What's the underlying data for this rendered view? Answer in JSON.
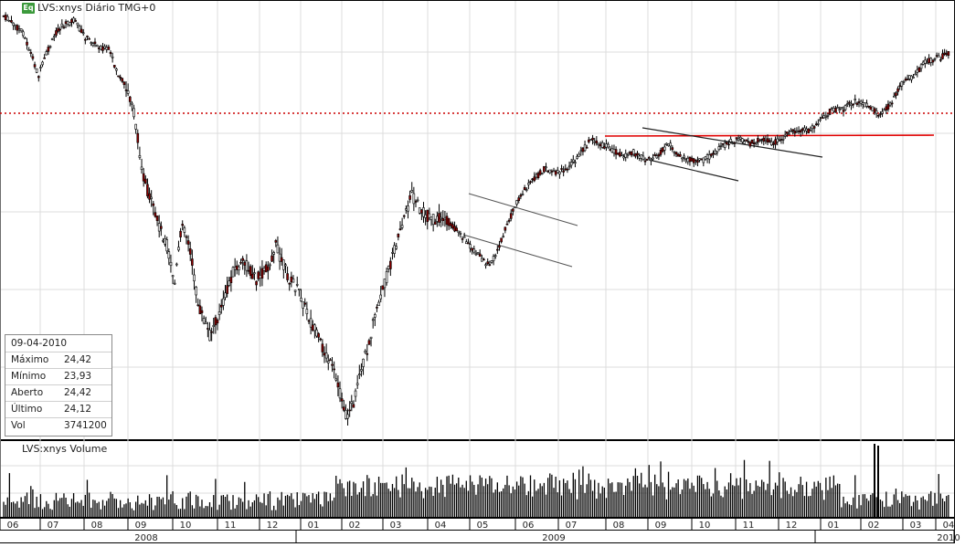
{
  "header": {
    "badge": "Eq",
    "title": "LVS:xnys Diário TMG+0"
  },
  "volume_panel": {
    "title": "LVS:xnys Volume"
  },
  "info_box": {
    "date": "09-04-2010",
    "rows": [
      {
        "label": "Máximo",
        "value": "24,42"
      },
      {
        "label": "Mínimo",
        "value": "23,93"
      },
      {
        "label": "Aberto",
        "value": "24,42"
      },
      {
        "label": "Último",
        "value": "24,12"
      },
      {
        "label": "Vol",
        "value": "3741200"
      }
    ]
  },
  "colors": {
    "up": "#f4f4f4",
    "down": "#8b0000",
    "outline": "#000000",
    "resistance": "#e00000",
    "dotted": "#cc0000",
    "grid": "#dcdcdc",
    "volume": "#000000"
  },
  "chart_data": {
    "type": "candlestick",
    "x_axis": {
      "month_ticks": [
        "06",
        "07",
        "08",
        "09",
        "10",
        "11",
        "12",
        "01",
        "02",
        "03",
        "04",
        "05",
        "06",
        "07",
        "08",
        "09",
        "10",
        "11",
        "12",
        "01",
        "02",
        "03",
        "04"
      ],
      "year_labels": [
        "2008",
        "2009",
        "2010"
      ]
    },
    "grid": true,
    "price_path": [
      {
        "i": 0,
        "p": 0.02
      },
      {
        "i": 10,
        "p": 0.06
      },
      {
        "i": 18,
        "p": 0.16
      },
      {
        "i": 22,
        "p": 0.11
      },
      {
        "i": 28,
        "p": 0.05
      },
      {
        "i": 36,
        "p": 0.03
      },
      {
        "i": 42,
        "p": 0.07
      },
      {
        "i": 48,
        "p": 0.09
      },
      {
        "i": 54,
        "p": 0.1
      },
      {
        "i": 60,
        "p": 0.17
      },
      {
        "i": 66,
        "p": 0.22
      },
      {
        "i": 72,
        "p": 0.4
      },
      {
        "i": 78,
        "p": 0.49
      },
      {
        "i": 84,
        "p": 0.56
      },
      {
        "i": 88,
        "p": 0.65
      },
      {
        "i": 92,
        "p": 0.5
      },
      {
        "i": 96,
        "p": 0.57
      },
      {
        "i": 100,
        "p": 0.7
      },
      {
        "i": 106,
        "p": 0.77
      },
      {
        "i": 112,
        "p": 0.71
      },
      {
        "i": 118,
        "p": 0.62
      },
      {
        "i": 124,
        "p": 0.6
      },
      {
        "i": 130,
        "p": 0.64
      },
      {
        "i": 136,
        "p": 0.61
      },
      {
        "i": 140,
        "p": 0.56
      },
      {
        "i": 146,
        "p": 0.63
      },
      {
        "i": 152,
        "p": 0.67
      },
      {
        "i": 158,
        "p": 0.74
      },
      {
        "i": 164,
        "p": 0.8
      },
      {
        "i": 170,
        "p": 0.86
      },
      {
        "i": 176,
        "p": 0.96
      },
      {
        "i": 180,
        "p": 0.93
      },
      {
        "i": 186,
        "p": 0.82
      },
      {
        "i": 192,
        "p": 0.71
      },
      {
        "i": 198,
        "p": 0.62
      },
      {
        "i": 204,
        "p": 0.52
      },
      {
        "i": 210,
        "p": 0.44
      },
      {
        "i": 214,
        "p": 0.47
      },
      {
        "i": 220,
        "p": 0.5
      },
      {
        "i": 226,
        "p": 0.49
      },
      {
        "i": 232,
        "p": 0.52
      },
      {
        "i": 238,
        "p": 0.55
      },
      {
        "i": 244,
        "p": 0.58
      },
      {
        "i": 250,
        "p": 0.61
      },
      {
        "i": 254,
        "p": 0.57
      },
      {
        "i": 260,
        "p": 0.5
      },
      {
        "i": 266,
        "p": 0.44
      },
      {
        "i": 272,
        "p": 0.41
      },
      {
        "i": 278,
        "p": 0.38
      },
      {
        "i": 284,
        "p": 0.39
      },
      {
        "i": 290,
        "p": 0.38
      },
      {
        "i": 296,
        "p": 0.35
      },
      {
        "i": 302,
        "p": 0.31
      },
      {
        "i": 306,
        "p": 0.32
      },
      {
        "i": 312,
        "p": 0.33
      },
      {
        "i": 318,
        "p": 0.35
      },
      {
        "i": 324,
        "p": 0.34
      },
      {
        "i": 330,
        "p": 0.36
      },
      {
        "i": 336,
        "p": 0.35
      },
      {
        "i": 342,
        "p": 0.32
      },
      {
        "i": 348,
        "p": 0.35
      },
      {
        "i": 354,
        "p": 0.36
      },
      {
        "i": 360,
        "p": 0.36
      },
      {
        "i": 366,
        "p": 0.34
      },
      {
        "i": 372,
        "p": 0.32
      },
      {
        "i": 378,
        "p": 0.31
      },
      {
        "i": 384,
        "p": 0.32
      },
      {
        "i": 390,
        "p": 0.31
      },
      {
        "i": 396,
        "p": 0.32
      },
      {
        "i": 402,
        "p": 0.3
      },
      {
        "i": 408,
        "p": 0.29
      },
      {
        "i": 414,
        "p": 0.29
      },
      {
        "i": 420,
        "p": 0.27
      },
      {
        "i": 426,
        "p": 0.24
      },
      {
        "i": 432,
        "p": 0.24
      },
      {
        "i": 438,
        "p": 0.22
      },
      {
        "i": 444,
        "p": 0.23
      },
      {
        "i": 450,
        "p": 0.25
      },
      {
        "i": 456,
        "p": 0.23
      },
      {
        "i": 462,
        "p": 0.18
      },
      {
        "i": 468,
        "p": 0.16
      },
      {
        "i": 474,
        "p": 0.13
      },
      {
        "i": 480,
        "p": 0.12
      },
      {
        "i": 486,
        "p": 0.11
      }
    ],
    "candle_count": 487,
    "y_axis_visible": false,
    "resistance_line_label": "",
    "last_close": 24.12
  }
}
